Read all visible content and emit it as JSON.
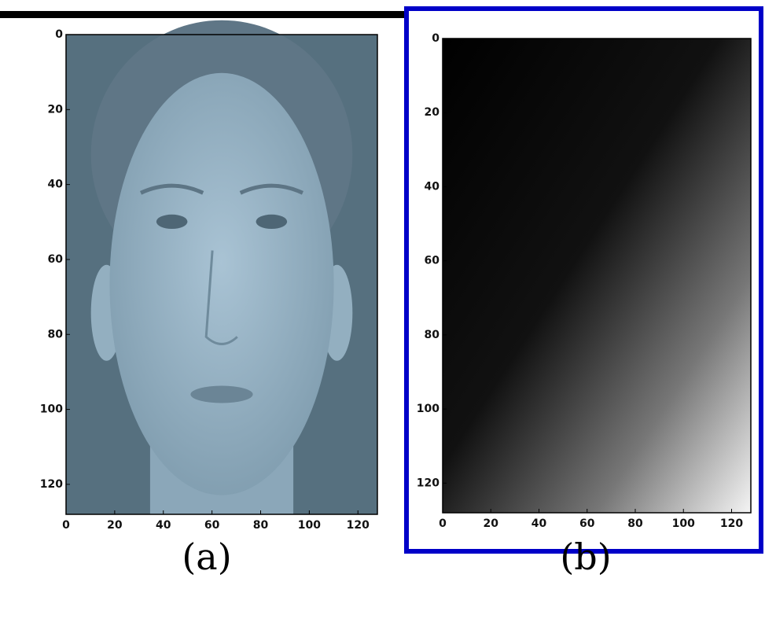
{
  "chart_data": [
    {
      "type": "face-image",
      "caption": "(a)",
      "xlim": [
        0,
        128
      ],
      "ylim": [
        128,
        0
      ],
      "xticks": [
        0,
        20,
        40,
        60,
        80,
        100,
        120
      ],
      "yticks": [
        0,
        20,
        40,
        60,
        80,
        100,
        120
      ]
    },
    {
      "type": "gradient-image",
      "caption": "(b)",
      "xlim": [
        0,
        128
      ],
      "ylim": [
        128,
        0
      ],
      "xticks": [
        0,
        20,
        40,
        60,
        80,
        100,
        120
      ],
      "yticks": [
        0,
        20,
        40,
        60,
        80,
        100,
        120
      ]
    }
  ]
}
